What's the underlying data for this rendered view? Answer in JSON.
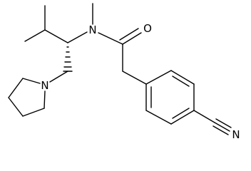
{
  "atoms": [
    {
      "label": "N"
    },
    {
      "label": "O"
    },
    {
      "label": "N"
    },
    {
      "label": "N"
    }
  ]
}
